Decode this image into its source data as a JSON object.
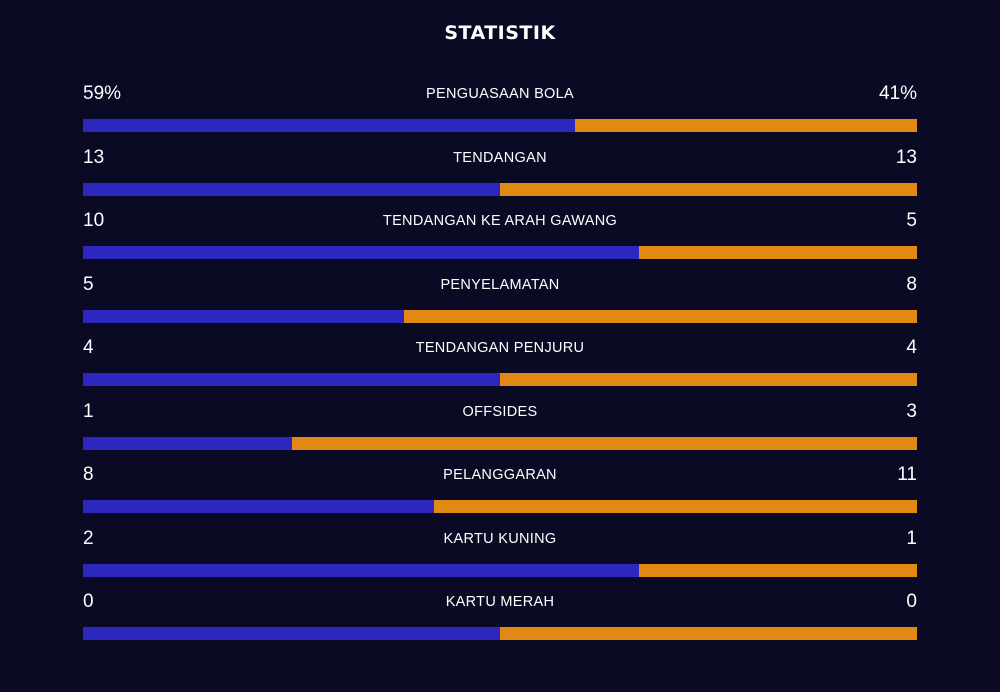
{
  "title": "STATISTIK",
  "colors": {
    "background": "#0a0a24",
    "home": "#2b27bf",
    "away": "#e08a14"
  },
  "stats": [
    {
      "label": "PENGUASAAN BOLA",
      "left": "59%",
      "right": "41%",
      "home_share": 0.59
    },
    {
      "label": "TENDANGAN",
      "left": "13",
      "right": "13",
      "home_share": 0.5
    },
    {
      "label": "TENDANGAN KE ARAH GAWANG",
      "left": "10",
      "right": "5",
      "home_share": 0.6667
    },
    {
      "label": "PENYELAMATAN",
      "left": "5",
      "right": "8",
      "home_share": 0.3846
    },
    {
      "label": "TENDANGAN PENJURU",
      "left": "4",
      "right": "4",
      "home_share": 0.5
    },
    {
      "label": "OFFSIDES",
      "left": "1",
      "right": "3",
      "home_share": 0.25
    },
    {
      "label": "PELANGGARAN",
      "left": "8",
      "right": "11",
      "home_share": 0.421
    },
    {
      "label": "KARTU KUNING",
      "left": "2",
      "right": "1",
      "home_share": 0.6667
    },
    {
      "label": "KARTU MERAH",
      "left": "0",
      "right": "0",
      "home_share": 0.5
    }
  ]
}
